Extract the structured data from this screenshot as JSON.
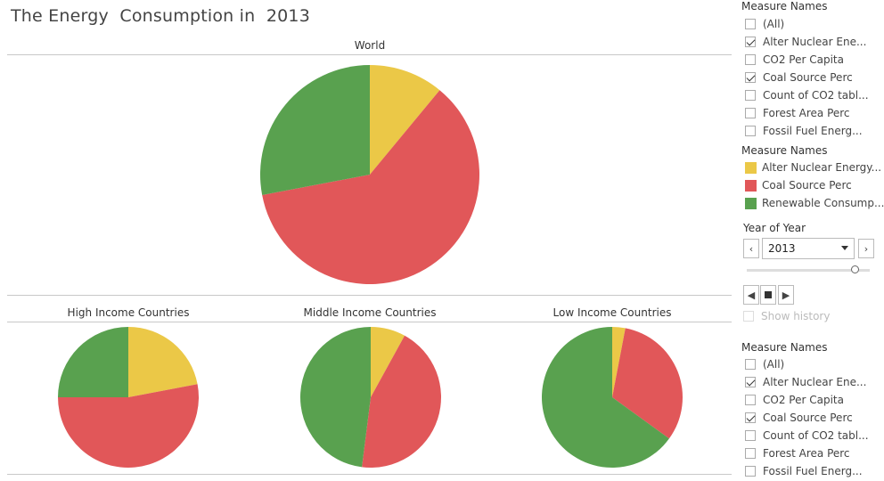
{
  "dashboard": {
    "title": "The Energy  Consumption in  2013"
  },
  "colors": {
    "alter_nuclear": "#EBC847",
    "coal": "#E15759",
    "renewable": "#59A14F"
  },
  "chart_data": [
    {
      "type": "pie",
      "title": "World",
      "labels": [
        "Alter Nuclear Energy",
        "Coal Source Perc",
        "Renewable Consumption"
      ],
      "values": [
        11,
        61,
        28
      ]
    },
    {
      "type": "pie",
      "title": "High Income Countries",
      "labels": [
        "Alter Nuclear Energy",
        "Coal Source Perc",
        "Renewable Consumption"
      ],
      "values": [
        22,
        53,
        25
      ]
    },
    {
      "type": "pie",
      "title": "Middle Income Countries",
      "labels": [
        "Alter Nuclear Energy",
        "Coal Source Perc",
        "Renewable Consumption"
      ],
      "values": [
        8,
        44,
        48
      ]
    },
    {
      "type": "pie",
      "title": "Low Income Countries",
      "labels": [
        "Alter Nuclear Energy",
        "Coal Source Perc",
        "Renewable Consumption"
      ],
      "values": [
        3,
        32,
        65
      ]
    }
  ],
  "filter_top": {
    "title": "Measure Names",
    "items": [
      {
        "label": "(All)",
        "checked": false
      },
      {
        "label": "Alter Nuclear Ene...",
        "checked": true
      },
      {
        "label": "CO2 Per Capita",
        "checked": false
      },
      {
        "label": "Coal Source Perc",
        "checked": true
      },
      {
        "label": "Count of CO2 tabl...",
        "checked": false
      },
      {
        "label": "Forest Area Perc",
        "checked": false
      },
      {
        "label": "Fossil Fuel Energ...",
        "checked": false
      }
    ]
  },
  "color_legend": {
    "title": "Measure Names",
    "items": [
      {
        "label": "Alter Nuclear Energy...",
        "color": "#EBC847"
      },
      {
        "label": "Coal Source Perc",
        "color": "#E15759"
      },
      {
        "label": "Renewable Consump...",
        "color": "#59A14F"
      }
    ]
  },
  "year_filter": {
    "title": "Year of Year",
    "value": "2013",
    "prev_icon": "chevron-left-icon",
    "next_icon": "chevron-right-icon",
    "show_history": "Show history"
  },
  "filter_bottom": {
    "title": "Measure Names",
    "items": [
      {
        "label": "(All)",
        "checked": false
      },
      {
        "label": "Alter Nuclear Ene...",
        "checked": true
      },
      {
        "label": "CO2 Per Capita",
        "checked": false
      },
      {
        "label": "Coal Source Perc",
        "checked": true
      },
      {
        "label": "Count of CO2 tabl...",
        "checked": false
      },
      {
        "label": "Forest Area Perc",
        "checked": false
      },
      {
        "label": "Fossil Fuel Energ...",
        "checked": false
      }
    ]
  }
}
